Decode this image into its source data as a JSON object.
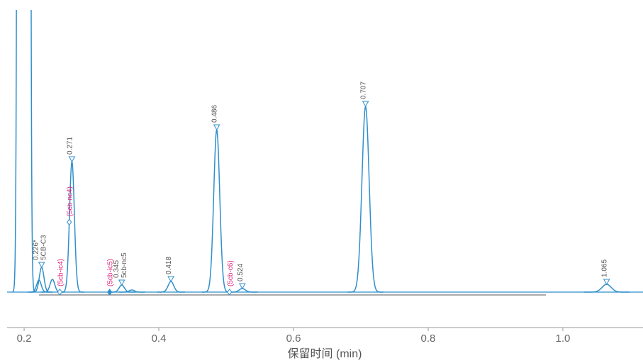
{
  "chart_data": {
    "type": "chromatogram",
    "xlabel": "保留时间 (min)",
    "xlim": [
      0.1747,
      1.119
    ],
    "xticks": [
      0.2,
      0.4,
      0.6,
      0.8,
      {
        "value": 1.0,
        "label": "1.0"
      }
    ],
    "ylim": [
      -50,
      397
    ],
    "color": "#2f8fcb",
    "label_color": "#555555",
    "expected_color": "#e0207a",
    "peaks": [
      {
        "rt": 0.1995,
        "height": 100000,
        "label": null,
        "name": null
      },
      {
        "rt": 0.222,
        "height": 17,
        "label": null,
        "name": null
      },
      {
        "rt": 0.226,
        "height": 35,
        "label": "0.226*",
        "name": "5CB-C3"
      },
      {
        "rt": 0.242,
        "height": 18,
        "label": null,
        "name": null
      },
      {
        "rt": 0.271,
        "height": 184,
        "label": "0.271",
        "name": null
      },
      {
        "rt": 0.345,
        "height": 10,
        "label": "0.345",
        "name": "5cb-nc5"
      },
      {
        "rt": 0.36,
        "height": 3,
        "label": null,
        "name": null
      },
      {
        "rt": 0.418,
        "height": 15,
        "label": "0.418",
        "name": null
      },
      {
        "rt": 0.486,
        "height": 229,
        "label": "0.486",
        "name": null
      },
      {
        "rt": 0.524,
        "height": 5,
        "label": "0.524",
        "name": null
      },
      {
        "rt": 0.707,
        "height": 262,
        "label": "0.707",
        "name": null
      },
      {
        "rt": 1.065,
        "height": 11,
        "label": "1.065",
        "name": null
      }
    ],
    "expected": [
      {
        "rt": 0.253,
        "label": "(5cb-ic4)"
      },
      {
        "rt": 0.267,
        "label": "(5cb-nc4)"
      },
      {
        "rt": 0.327,
        "label": "(5cb-ic5)"
      },
      {
        "rt": 0.505,
        "label": "(5cb-c6)"
      }
    ]
  }
}
